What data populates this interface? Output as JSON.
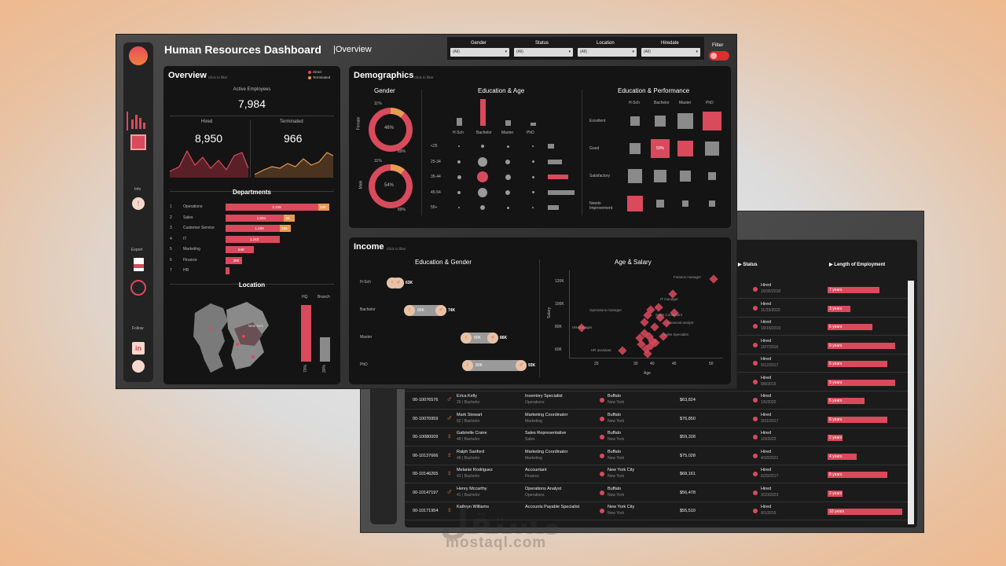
{
  "filters": {
    "gender_label": "Gender",
    "status_label": "Status",
    "location_label": "Location",
    "hiredate_label": "Hiredate",
    "all": "(All)",
    "filter_label": "Filter"
  },
  "header": {
    "title": "Human Resources Dashboard",
    "subtitle": "|Overview"
  },
  "sidebar": {
    "info": "Info",
    "export": "Export",
    "follow": "Follow"
  },
  "overview": {
    "title": "Overview",
    "hint": "Click to filter",
    "legend_hired": "Hired",
    "legend_terminated": "Terminated",
    "active_label": "Active Employees",
    "active_value": "7,984",
    "hired_label": "Hired",
    "hired_value": "8,950",
    "terminated_label": "Terminated",
    "terminated_value": "966"
  },
  "departments": {
    "title": "Departments",
    "items": [
      {
        "n": "1",
        "name": "Operations",
        "hired": "2,429",
        "term": "289",
        "frac": 1.0
      },
      {
        "n": "2",
        "name": "Sales",
        "hired": "1,634",
        "term": "98",
        "frac": 0.67
      },
      {
        "n": "3",
        "name": "Customer Service",
        "hired": "1,489",
        "term": "156",
        "frac": 0.63
      },
      {
        "n": "4",
        "name": "IT",
        "hired": "1,243",
        "term": "",
        "frac": 0.52
      },
      {
        "n": "5",
        "name": "Marketing",
        "hired": "648",
        "term": "",
        "frac": 0.27
      },
      {
        "n": "6",
        "name": "Finance",
        "hired": "389",
        "term": "",
        "frac": 0.16
      },
      {
        "n": "7",
        "name": "HR",
        "hired": "",
        "term": "",
        "frac": 0.04
      }
    ]
  },
  "location": {
    "title": "Location",
    "hq": "HQ",
    "branch": "Branch",
    "hq_pct": "70%",
    "branch_pct": "30%",
    "map_label": "New York"
  },
  "demographics": {
    "title": "Demographics",
    "hint": "Click to filter",
    "gender_title": "Gender",
    "female": "Female",
    "male": "Male",
    "female_top": "11%",
    "female_mid": "46%",
    "female_bot": "89%",
    "male_top": "11%",
    "male_mid": "54%",
    "male_bot": "89%",
    "edu_age_title": "Education & Age",
    "edu_levels": [
      "H-Sch",
      "Bachelor",
      "Master",
      "PhD"
    ],
    "ages": [
      "<25",
      "25-34",
      "35-44",
      "45-54",
      "55+"
    ],
    "edu_perf_title": "Education & Performance",
    "perf": [
      "Excellent",
      "Good",
      "Satisfactory",
      "Needs Improvement"
    ],
    "perf_50": "50%"
  },
  "income": {
    "title": "Income",
    "hint": "Click to filter",
    "edu_gender_title": "Education & Gender",
    "age_salary_title": "Age & Salary",
    "rows": [
      {
        "edu": "H-Sch",
        "a": "",
        "b": "63K"
      },
      {
        "edu": "Bachelor",
        "a": "66K",
        "b": "74K"
      },
      {
        "edu": "Master",
        "a": "80K",
        "b": "86K"
      },
      {
        "edu": "PhD",
        "a": "80K",
        "b": "93K"
      }
    ],
    "yticks": [
      "120K",
      "100K",
      "80K",
      "60K"
    ],
    "xticks": [
      "25",
      "30",
      "40",
      "45",
      "50"
    ],
    "xlabel": "Age",
    "ylabel": "Salary",
    "jobs": [
      "Finance manager",
      "IT manager",
      "Operations manager",
      "Sales Consultant",
      "Financial analyst",
      "HR Manager",
      "Sales Specialist",
      "HR assistant"
    ]
  },
  "table": {
    "status_header": "Status",
    "length_header": "Length of Employment",
    "top_rows": [
      {
        "s": "Hired",
        "d": "10/30/2018",
        "len": "7 years",
        "f": 0.6
      },
      {
        "s": "Hired",
        "d": "11/23/2022",
        "len": "3 years",
        "f": 0.26
      },
      {
        "s": "Hired",
        "d": "10/15/2019",
        "len": "6 years",
        "f": 0.52
      },
      {
        "s": "Hired",
        "d": "10/7/2016",
        "len": "9 years",
        "f": 0.78
      },
      {
        "s": "Hired",
        "d": "9/12/2017",
        "len": "8 years",
        "f": 0.69
      },
      {
        "s": "Hired",
        "d": "8/8/2016",
        "len": "9 years",
        "f": 0.78
      }
    ],
    "rows": [
      {
        "id": "00-10076576",
        "name": "Erica Kelly",
        "meta": "26 | Bachelor",
        "job": "Inventory Specialist",
        "dept": "Operations",
        "city": "Buffalo",
        "state": "New York",
        "sal": "$63,824",
        "s": "Hired",
        "d": "1/5/2020",
        "len": "5 years",
        "f": 0.43
      },
      {
        "id": "00-10076959",
        "name": "Mark Stewart",
        "meta": "62 | Bachelor",
        "job": "Marketing Coordinator",
        "dept": "Marketing",
        "city": "Buffalo",
        "state": "New York",
        "sal": "$76,850",
        "s": "Hired",
        "d": "3/31/2017",
        "len": "8 years",
        "f": 0.69
      },
      {
        "id": "00-10080009",
        "name": "Gabrielle Crane",
        "meta": "48 | Bachelor",
        "job": "Sales Representative",
        "dept": "Sales",
        "city": "Buffalo",
        "state": "New York",
        "sal": "$59,328",
        "s": "Hired",
        "d": "1/9/2023",
        "len": "2 years",
        "f": 0.17
      },
      {
        "id": "00-10137666",
        "name": "Ralph Sanford",
        "meta": "48 | Bachelor",
        "job": "Marketing Coordinator",
        "dept": "Marketing",
        "city": "Buffalo",
        "state": "New York",
        "sal": "$75,028",
        "s": "Hired",
        "d": "4/18/2021",
        "len": "4 years",
        "f": 0.34
      },
      {
        "id": "00-10146265",
        "name": "Melanie Rodriguez",
        "meta": "43 | Bachelor",
        "job": "Accountant",
        "dept": "Finance",
        "city": "New York City",
        "state": "New York",
        "sal": "$68,161",
        "s": "Hired",
        "d": "6/29/2017",
        "len": "8 years",
        "f": 0.69
      },
      {
        "id": "00-10147197",
        "name": "Henry Mccarthy",
        "meta": "41 | Bachelor",
        "job": "Operations Analyst",
        "dept": "Operations",
        "city": "Buffalo",
        "state": "New York",
        "sal": "$56,478",
        "s": "Hired",
        "d": "3/10/2023",
        "len": "2 years",
        "f": 0.17
      },
      {
        "id": "00-10171954",
        "name": "Kathryn Williams",
        "meta": "",
        "job": "Accounts Payable Specialist",
        "dept": "",
        "city": "New York City",
        "state": "New York",
        "sal": "$55,510",
        "s": "Hired",
        "d": "9/1/2015",
        "len": "10 years",
        "f": 0.86
      }
    ]
  },
  "watermark": {
    "ar": "مستقل",
    "en": "mostaql.com"
  }
}
